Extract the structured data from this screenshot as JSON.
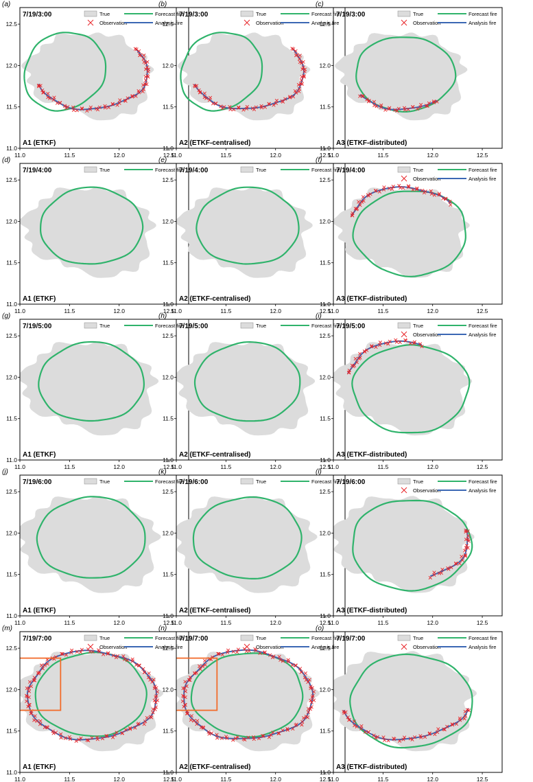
{
  "chart_data": {
    "type": "scatter",
    "layout_rows": 5,
    "layout_cols": 3,
    "xlim": [
      11.0,
      12.7
    ],
    "ylim": [
      11.0,
      12.7
    ],
    "xticks": [
      "11.0",
      "11.5",
      "12.0",
      "12.5"
    ],
    "yticks": [
      "11.0",
      "11.5",
      "12.0",
      "12.5"
    ],
    "legend_labels": {
      "true": "True",
      "forecast": "Forecast fire",
      "observation": "Observation",
      "analysis": "Analysis fire"
    },
    "colors": {
      "true": "#dcdcdc",
      "forecast": "#2fb36b",
      "analysis": "#3b67b4",
      "observation": "#e8262a",
      "zoom_box": "#f26b2a"
    },
    "panels": [
      {
        "letter": "(a)",
        "time": "7/19/3:00",
        "caption": "A1 (ETKF)",
        "hour": 3,
        "scheme": "A1",
        "legend": "full",
        "obs_arc": [
          0.55,
          1.1
        ],
        "zoom": false
      },
      {
        "letter": "(b)",
        "time": "7/19/3:00",
        "caption": "A2 (ETKF-centralised)",
        "hour": 3,
        "scheme": "A2",
        "legend": "full",
        "obs_arc": [
          0.55,
          1.1
        ],
        "zoom": false
      },
      {
        "letter": "(c)",
        "time": "7/19/3:00",
        "caption": "A3 (ETKF-distributed)",
        "hour": 3,
        "scheme": "A3",
        "legend": "full",
        "obs_arc": [
          0.6,
          0.85
        ],
        "zoom": false
      },
      {
        "letter": "(d)",
        "time": "7/19/4:00",
        "caption": "A1 (ETKF)",
        "hour": 4,
        "scheme": "A1",
        "legend": "short",
        "obs_arc": null,
        "zoom": false
      },
      {
        "letter": "(e)",
        "time": "7/19/4:00",
        "caption": "A2 (ETKF-centralised)",
        "hour": 4,
        "scheme": "A2",
        "legend": "short",
        "obs_arc": null,
        "zoom": false
      },
      {
        "letter": "(f)",
        "time": "7/19/4:00",
        "caption": "A3 (ETKF-distributed)",
        "hour": 4,
        "scheme": "A3",
        "legend": "full",
        "obs_arc": [
          0.1,
          0.45
        ],
        "zoom": false
      },
      {
        "letter": "(g)",
        "time": "7/19/5:00",
        "caption": "A1 (ETKF)",
        "hour": 5,
        "scheme": "A1",
        "legend": "short",
        "obs_arc": null,
        "zoom": false
      },
      {
        "letter": "(h)",
        "time": "7/19/5:00",
        "caption": "A2 (ETKF-centralised)",
        "hour": 5,
        "scheme": "A2",
        "legend": "short",
        "obs_arc": null,
        "zoom": false
      },
      {
        "letter": "(i)",
        "time": "7/19/5:00",
        "caption": "A3 (ETKF-distributed)",
        "hour": 5,
        "scheme": "A3",
        "legend": "full",
        "obs_arc": [
          0.2,
          0.46
        ],
        "zoom": false
      },
      {
        "letter": "(j)",
        "time": "7/19/6:00",
        "caption": "A1 (ETKF)",
        "hour": 6,
        "scheme": "A1",
        "legend": "short",
        "obs_arc": null,
        "zoom": false
      },
      {
        "letter": "(k)",
        "time": "7/19/6:00",
        "caption": "A2 (ETKF-centralised)",
        "hour": 6,
        "scheme": "A2",
        "legend": "short",
        "obs_arc": null,
        "zoom": false
      },
      {
        "letter": "(l)",
        "time": "7/19/6:00",
        "caption": "A3 (ETKF-distributed)",
        "hour": 6,
        "scheme": "A3",
        "legend": "full",
        "obs_arc": [
          0.82,
          1.04
        ],
        "zoom": false
      },
      {
        "letter": "(m)",
        "time": "7/19/7:00",
        "caption": "A1 (ETKF)",
        "hour": 7,
        "scheme": "A1",
        "legend": "full",
        "obs_arc": [
          0.0,
          1.0
        ],
        "zoom": true
      },
      {
        "letter": "(n)",
        "time": "7/19/7:00",
        "caption": "A2 (ETKF-centralised)",
        "hour": 7,
        "scheme": "A2",
        "legend": "full",
        "obs_arc": [
          0.0,
          1.0
        ],
        "zoom": true
      },
      {
        "letter": "(o)",
        "time": "7/19/7:00",
        "caption": "A3 (ETKF-distributed)",
        "hour": 7,
        "scheme": "A3",
        "legend": "full",
        "obs_arc": [
          0.55,
          0.95
        ],
        "zoom": false
      }
    ]
  }
}
